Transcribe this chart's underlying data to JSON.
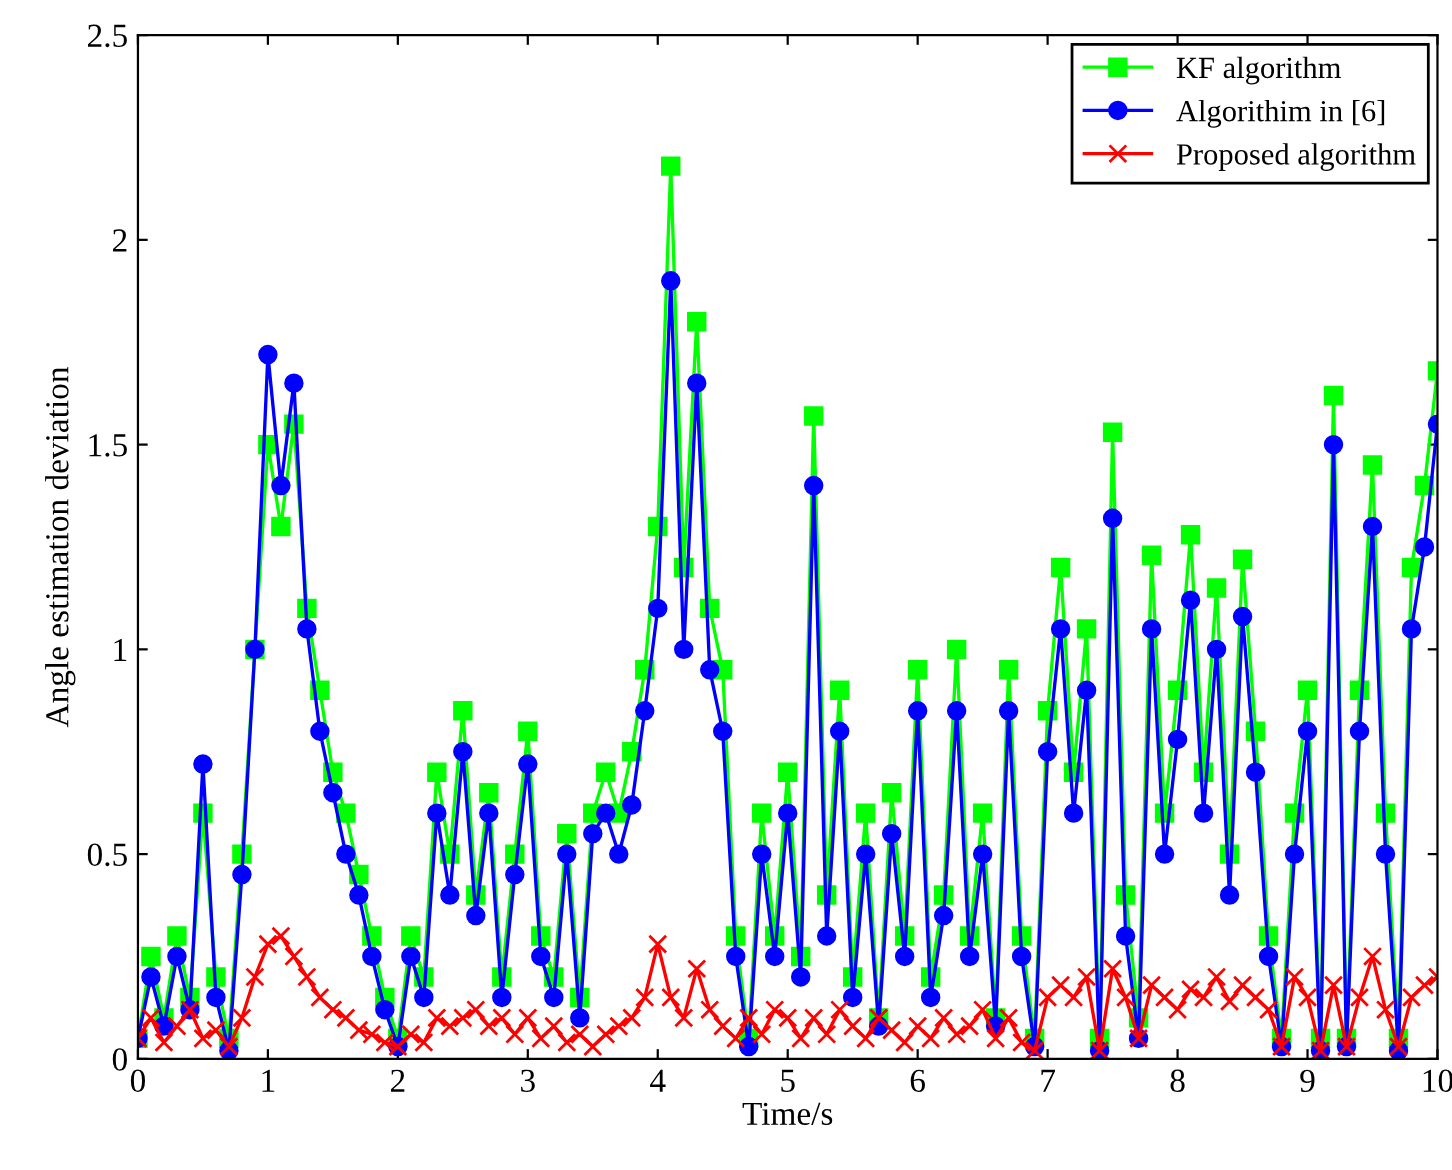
{
  "chart_data": {
    "type": "line",
    "xlabel": "Time/s",
    "ylabel": "Angle estimation deviation",
    "x": [
      0,
      0.1,
      0.2,
      0.3,
      0.4,
      0.5,
      0.6,
      0.7,
      0.8,
      0.9,
      1,
      1.1,
      1.2,
      1.3,
      1.4,
      1.5,
      1.6,
      1.7,
      1.8,
      1.9,
      2,
      2.1,
      2.2,
      2.3,
      2.4,
      2.5,
      2.6,
      2.7,
      2.8,
      2.9,
      3,
      3.1,
      3.2,
      3.3,
      3.4,
      3.5,
      3.6,
      3.7,
      3.8,
      3.9,
      4,
      4.1,
      4.2,
      4.3,
      4.4,
      4.5,
      4.6,
      4.7,
      4.8,
      4.9,
      5,
      5.1,
      5.2,
      5.3,
      5.4,
      5.5,
      5.6,
      5.7,
      5.8,
      5.9,
      6,
      6.1,
      6.2,
      6.3,
      6.4,
      6.5,
      6.6,
      6.7,
      6.8,
      6.9,
      7,
      7.1,
      7.2,
      7.3,
      7.4,
      7.5,
      7.6,
      7.7,
      7.8,
      7.9,
      8,
      8.1,
      8.2,
      8.3,
      8.4,
      8.5,
      8.6,
      8.7,
      8.8,
      8.9,
      9,
      9.1,
      9.2,
      9.3,
      9.4,
      9.5,
      9.6,
      9.7,
      9.8,
      9.9,
      10
    ],
    "series": [
      {
        "name": "KF algorithm",
        "color": "#00ff00",
        "marker": "square",
        "values": [
          0.05,
          0.25,
          0.1,
          0.3,
          0.15,
          0.6,
          0.2,
          0.05,
          0.5,
          1.0,
          1.5,
          1.3,
          1.55,
          1.1,
          0.9,
          0.7,
          0.6,
          0.45,
          0.3,
          0.15,
          0.05,
          0.3,
          0.2,
          0.7,
          0.5,
          0.85,
          0.4,
          0.65,
          0.2,
          0.5,
          0.8,
          0.3,
          0.2,
          0.55,
          0.15,
          0.6,
          0.7,
          0.6,
          0.75,
          0.95,
          1.3,
          2.18,
          1.2,
          1.8,
          1.1,
          0.95,
          0.3,
          0.05,
          0.6,
          0.3,
          0.7,
          0.25,
          1.57,
          0.4,
          0.9,
          0.2,
          0.6,
          0.1,
          0.65,
          0.3,
          0.95,
          0.2,
          0.4,
          1.0,
          0.3,
          0.6,
          0.1,
          0.95,
          0.3,
          0.05,
          0.85,
          1.2,
          0.7,
          1.05,
          0.05,
          1.53,
          0.4,
          0.1,
          1.23,
          0.6,
          0.9,
          1.28,
          0.7,
          1.15,
          0.5,
          1.22,
          0.8,
          0.3,
          0.05,
          0.6,
          0.9,
          0.05,
          1.62,
          0.05,
          0.9,
          1.45,
          0.6,
          0.05,
          1.2,
          1.4,
          1.68
        ]
      },
      {
        "name": "Algorithim in [6]",
        "color": "#0000ff",
        "marker": "circle",
        "values": [
          0.05,
          0.2,
          0.08,
          0.25,
          0.12,
          0.72,
          0.15,
          0.02,
          0.45,
          1.0,
          1.72,
          1.4,
          1.65,
          1.05,
          0.8,
          0.65,
          0.5,
          0.4,
          0.25,
          0.12,
          0.03,
          0.25,
          0.15,
          0.6,
          0.4,
          0.75,
          0.35,
          0.6,
          0.15,
          0.45,
          0.72,
          0.25,
          0.15,
          0.5,
          0.1,
          0.55,
          0.6,
          0.5,
          0.62,
          0.85,
          1.1,
          1.9,
          1.0,
          1.65,
          0.95,
          0.8,
          0.25,
          0.03,
          0.5,
          0.25,
          0.6,
          0.2,
          1.4,
          0.3,
          0.8,
          0.15,
          0.5,
          0.08,
          0.55,
          0.25,
          0.85,
          0.15,
          0.35,
          0.85,
          0.25,
          0.5,
          0.08,
          0.85,
          0.25,
          0.03,
          0.75,
          1.05,
          0.6,
          0.9,
          0.02,
          1.32,
          0.3,
          0.05,
          1.05,
          0.5,
          0.78,
          1.12,
          0.6,
          1.0,
          0.4,
          1.08,
          0.7,
          0.25,
          0.03,
          0.5,
          0.8,
          0.02,
          1.5,
          0.03,
          0.8,
          1.3,
          0.5,
          0.02,
          1.05,
          1.25,
          1.55
        ]
      },
      {
        "name": "Proposed algorithm",
        "color": "#ff0000",
        "marker": "cross",
        "values": [
          0.05,
          0.1,
          0.04,
          0.08,
          0.12,
          0.05,
          0.07,
          0.03,
          0.1,
          0.2,
          0.28,
          0.3,
          0.25,
          0.2,
          0.15,
          0.12,
          0.1,
          0.07,
          0.06,
          0.04,
          0.03,
          0.06,
          0.04,
          0.1,
          0.08,
          0.1,
          0.12,
          0.08,
          0.1,
          0.06,
          0.1,
          0.05,
          0.08,
          0.04,
          0.06,
          0.03,
          0.06,
          0.08,
          0.1,
          0.15,
          0.28,
          0.15,
          0.1,
          0.22,
          0.12,
          0.08,
          0.05,
          0.1,
          0.06,
          0.12,
          0.1,
          0.05,
          0.1,
          0.06,
          0.12,
          0.08,
          0.05,
          0.1,
          0.07,
          0.04,
          0.08,
          0.05,
          0.1,
          0.06,
          0.08,
          0.12,
          0.05,
          0.1,
          0.04,
          0.02,
          0.15,
          0.18,
          0.15,
          0.2,
          0.02,
          0.22,
          0.15,
          0.05,
          0.18,
          0.15,
          0.12,
          0.17,
          0.15,
          0.2,
          0.14,
          0.18,
          0.15,
          0.12,
          0.03,
          0.2,
          0.15,
          0.02,
          0.18,
          0.03,
          0.15,
          0.25,
          0.12,
          0.03,
          0.15,
          0.18,
          0.2
        ]
      }
    ],
    "xlim": [
      0,
      10
    ],
    "xticks": [
      0,
      1,
      2,
      3,
      4,
      5,
      6,
      7,
      8,
      9,
      10
    ],
    "ylim": [
      0,
      2.5
    ],
    "yticks": [
      0,
      0.5,
      1,
      1.5,
      2,
      2.5
    ],
    "legend": "top right",
    "grid": false,
    "line_style": "solid"
  }
}
